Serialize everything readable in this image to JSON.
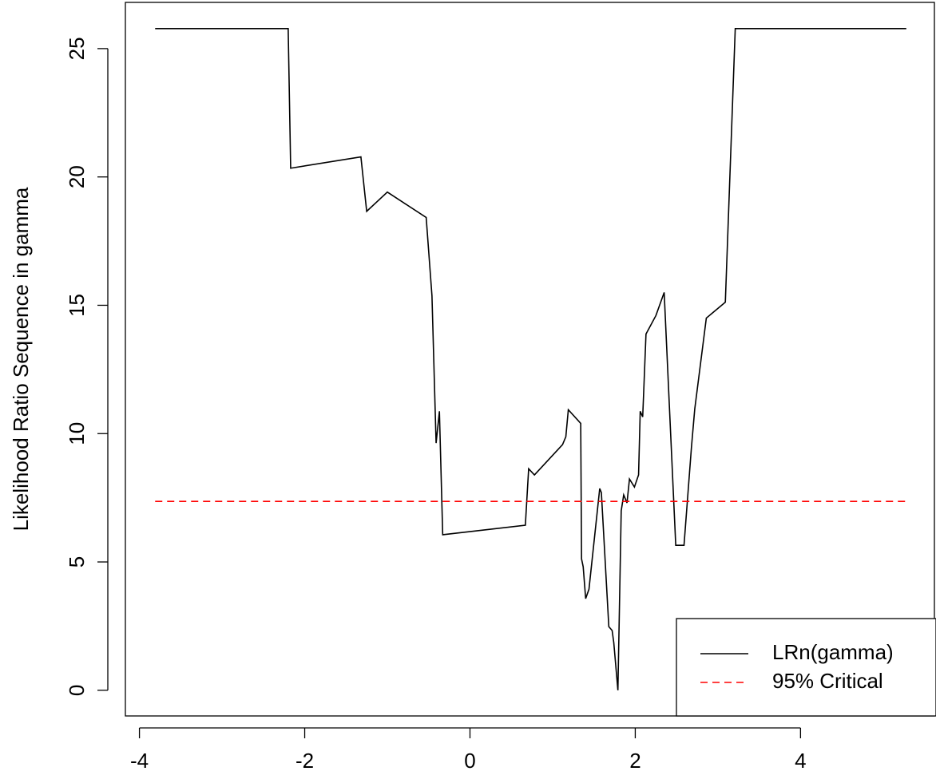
{
  "chart_data": {
    "type": "line",
    "ylabel": "Likelihood Ratio Sequence in gamma",
    "xlim": [
      -4.17,
      5.62
    ],
    "ylim": [
      -1.0,
      26.8
    ],
    "xticks": [
      -4,
      -2,
      0,
      2,
      4
    ],
    "yticks": [
      0,
      5,
      10,
      15,
      20,
      25
    ],
    "legend": "bottom-right",
    "series": [
      {
        "name": "LRn(gamma)",
        "color": "#000000",
        "linestyle": "solid",
        "x": [
          -3.81,
          -2.2,
          -2.17,
          -1.32,
          -1.25,
          -1.0,
          -0.53,
          -0.46,
          -0.41,
          -0.37,
          -0.33,
          0.67,
          0.71,
          0.78,
          1.12,
          1.16,
          1.19,
          1.34,
          1.35,
          1.37,
          1.4,
          1.44,
          1.57,
          1.59,
          1.68,
          1.72,
          1.74,
          1.79,
          1.83,
          1.86,
          1.9,
          1.93,
          1.99,
          2.04,
          2.06,
          2.09,
          2.13,
          2.25,
          2.35,
          2.49,
          2.59,
          2.68,
          2.72,
          2.86,
          3.09,
          3.21,
          5.28
        ],
        "values": [
          25.78,
          25.78,
          20.34,
          20.78,
          18.66,
          19.41,
          18.42,
          15.37,
          9.63,
          10.87,
          6.06,
          6.43,
          8.63,
          8.39,
          9.57,
          9.88,
          10.93,
          10.4,
          5.12,
          4.81,
          3.57,
          3.94,
          7.86,
          7.7,
          2.48,
          2.33,
          1.86,
          0.0,
          6.99,
          7.61,
          7.3,
          8.23,
          7.92,
          8.39,
          10.87,
          10.65,
          13.88,
          14.6,
          15.5,
          5.65,
          5.65,
          9.47,
          10.96,
          14.5,
          15.12,
          25.78,
          25.78
        ]
      },
      {
        "name": "95% Critical",
        "color": "#ff0000",
        "linestyle": "dashed",
        "x": [
          -3.81,
          5.28
        ],
        "values": [
          7.36,
          7.36
        ]
      }
    ]
  }
}
